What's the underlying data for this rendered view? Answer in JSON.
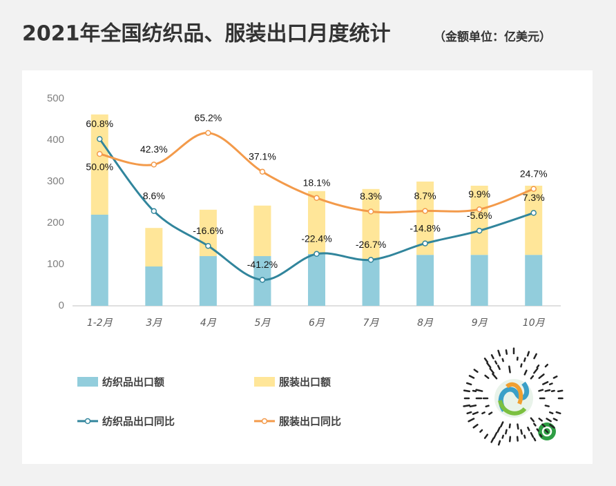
{
  "chart_data": {
    "type": "bar",
    "title": "2021年全国纺织品、服装出口月度统计",
    "subtitle": "（金额单位：亿美元）",
    "categories": [
      "1-2月",
      "3月",
      "4月",
      "5月",
      "6月",
      "7月",
      "8月",
      "9月",
      "10月"
    ],
    "ylim": [
      0,
      500
    ],
    "yticks": [
      0,
      100,
      200,
      300,
      400,
      500
    ],
    "y2lim": [
      -60,
      90
    ],
    "series": [
      {
        "name": "纺织品出口额",
        "type": "bar",
        "color": "#92cddc",
        "values": [
          220,
          95,
          120,
          120,
          125,
          112,
          123,
          123,
          123
        ]
      },
      {
        "name": "服装出口额",
        "type": "bar",
        "color": "#ffe699",
        "values": [
          242,
          93,
          112,
          122,
          152,
          170,
          177,
          167,
          167
        ]
      },
      {
        "name": "纺织品出口同比",
        "type": "line",
        "axis": "y2",
        "color": "#31859c",
        "values": [
          60.8,
          8.6,
          -16.6,
          -41.2,
          -22.4,
          -26.7,
          -14.8,
          -5.6,
          7.3
        ],
        "value_labels": [
          "60.8%",
          "8.6%",
          "-16.6%",
          "-41.2%",
          "-22.4%",
          "-26.7%",
          "-14.8%",
          "-5.6%",
          "7.3%"
        ]
      },
      {
        "name": "服装出口同比",
        "type": "line",
        "axis": "y2",
        "color": "#f39a4a",
        "values": [
          50.0,
          42.3,
          65.2,
          37.1,
          18.1,
          8.3,
          8.7,
          9.9,
          24.7
        ],
        "value_labels": [
          "50.0%",
          "42.3%",
          "65.2%",
          "37.1%",
          "18.1%",
          "8.3%",
          "8.7%",
          "9.9%",
          "24.7%"
        ]
      }
    ]
  }
}
